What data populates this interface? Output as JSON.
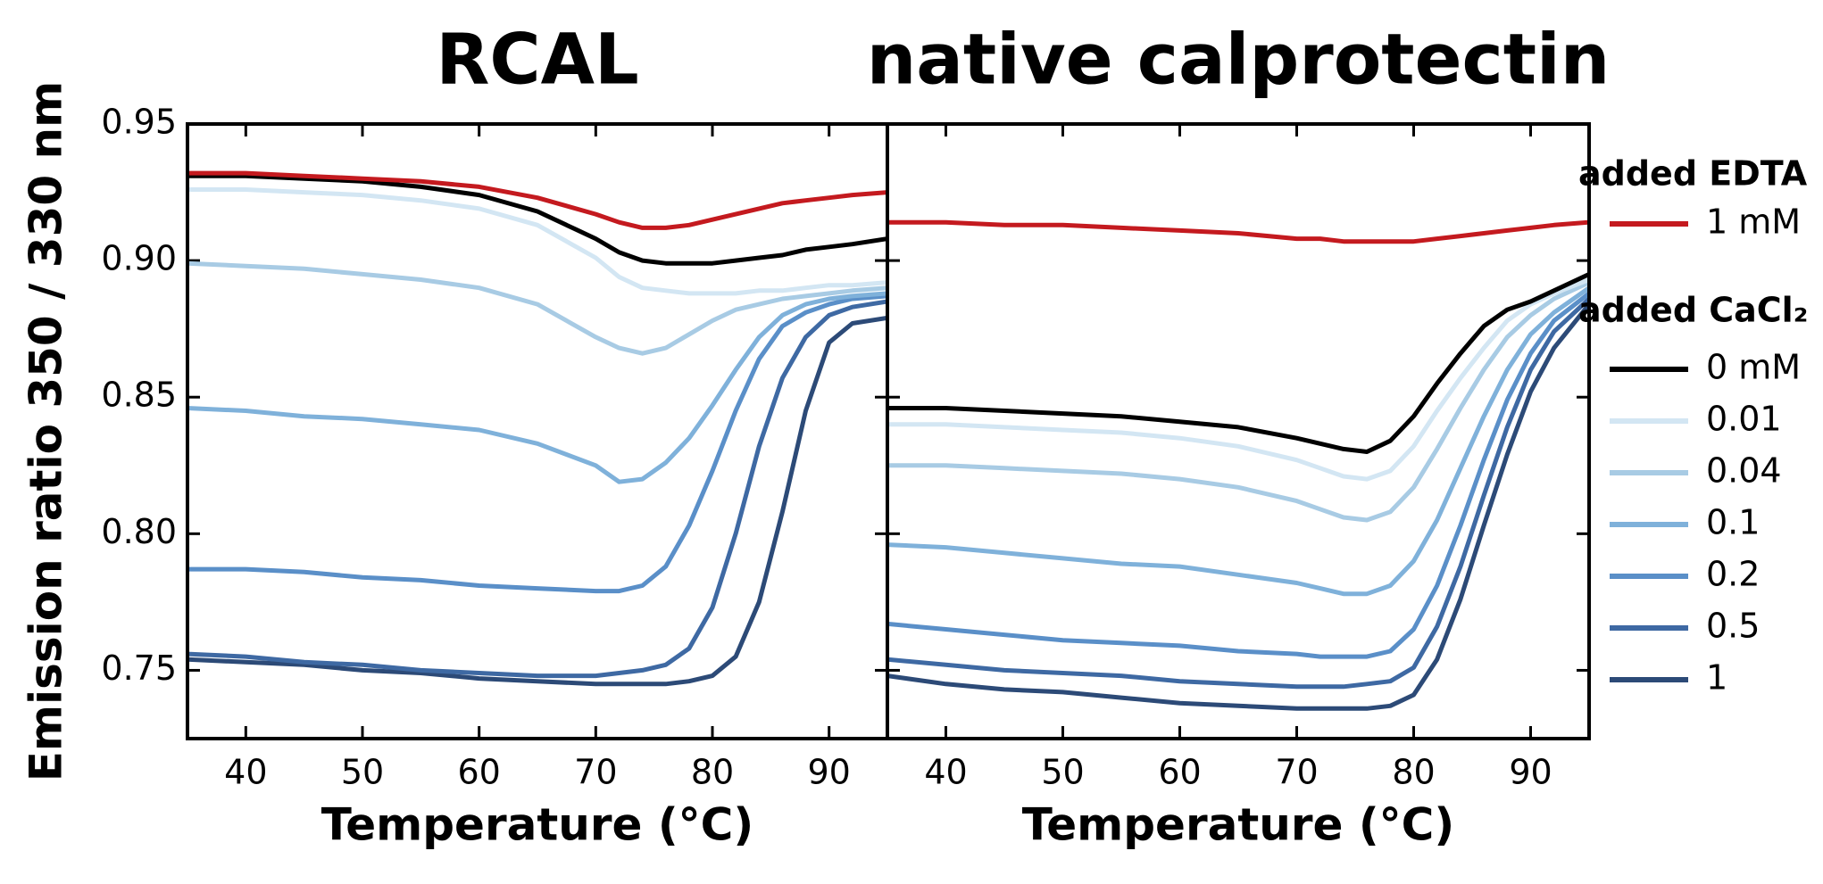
{
  "chart_data": [
    {
      "type": "line",
      "title": "RCAL",
      "xlabel": "Temperature (°C)",
      "ylabel": "Emission ratio 350 / 330 nm",
      "legend_titles": [
        {
          "text": "added EDTA",
          "color": "#b5191f"
        },
        {
          "text": "added CaCl₂",
          "color": "#2f4f7f"
        }
      ],
      "xlim": [
        35,
        95
      ],
      "ylim": [
        0.725,
        0.95
      ],
      "xticks": [
        40,
        50,
        60,
        70,
        80,
        90
      ],
      "yticks": [
        {
          "value": 0.75,
          "label": "0.75"
        },
        {
          "value": 0.8,
          "label": "0.80"
        },
        {
          "value": 0.85,
          "label": "0.85"
        },
        {
          "value": 0.9,
          "label": "0.90"
        },
        {
          "value": 0.95,
          "label": "0.95"
        }
      ],
      "x": [
        35,
        40,
        45,
        50,
        55,
        60,
        65,
        70,
        72,
        74,
        76,
        78,
        80,
        82,
        84,
        86,
        88,
        90,
        92,
        95
      ],
      "series": [
        {
          "name": "1 mM",
          "color": "#c41a1f",
          "values": [
            0.932,
            0.932,
            0.931,
            0.93,
            0.929,
            0.927,
            0.923,
            0.917,
            0.914,
            0.912,
            0.912,
            0.913,
            0.915,
            0.917,
            0.919,
            0.921,
            0.922,
            0.923,
            0.924,
            0.925
          ]
        },
        {
          "name": "0 mM",
          "color": "#000000",
          "values": [
            0.931,
            0.931,
            0.93,
            0.929,
            0.927,
            0.924,
            0.918,
            0.908,
            0.903,
            0.9,
            0.899,
            0.899,
            0.899,
            0.9,
            0.901,
            0.902,
            0.904,
            0.905,
            0.906,
            0.908
          ]
        },
        {
          "name": "0.01",
          "color": "#d3e6f3",
          "values": [
            0.926,
            0.926,
            0.925,
            0.924,
            0.922,
            0.919,
            0.913,
            0.901,
            0.894,
            0.89,
            0.889,
            0.888,
            0.888,
            0.888,
            0.889,
            0.889,
            0.89,
            0.891,
            0.891,
            0.892
          ]
        },
        {
          "name": "0.04",
          "color": "#a8cbe4",
          "values": [
            0.899,
            0.898,
            0.897,
            0.895,
            0.893,
            0.89,
            0.884,
            0.872,
            0.868,
            0.866,
            0.868,
            0.873,
            0.878,
            0.882,
            0.884,
            0.886,
            0.887,
            0.888,
            0.889,
            0.89
          ]
        },
        {
          "name": "0.1",
          "color": "#7fb1da",
          "values": [
            0.846,
            0.845,
            0.843,
            0.842,
            0.84,
            0.838,
            0.833,
            0.825,
            0.819,
            0.82,
            0.826,
            0.835,
            0.847,
            0.86,
            0.872,
            0.88,
            0.884,
            0.886,
            0.887,
            0.888
          ]
        },
        {
          "name": "0.2",
          "color": "#5a8fc8",
          "values": [
            0.787,
            0.787,
            0.786,
            0.784,
            0.783,
            0.781,
            0.78,
            0.779,
            0.779,
            0.781,
            0.788,
            0.803,
            0.823,
            0.845,
            0.864,
            0.876,
            0.881,
            0.884,
            0.886,
            0.887
          ]
        },
        {
          "name": "0.5",
          "color": "#3e69a3",
          "values": [
            0.756,
            0.755,
            0.753,
            0.752,
            0.75,
            0.749,
            0.748,
            0.748,
            0.749,
            0.75,
            0.752,
            0.758,
            0.773,
            0.8,
            0.832,
            0.857,
            0.872,
            0.88,
            0.883,
            0.885
          ]
        },
        {
          "name": "1",
          "color": "#2c4a77",
          "values": [
            0.754,
            0.753,
            0.752,
            0.75,
            0.749,
            0.747,
            0.746,
            0.745,
            0.745,
            0.745,
            0.745,
            0.746,
            0.748,
            0.755,
            0.775,
            0.808,
            0.845,
            0.87,
            0.877,
            0.879
          ]
        }
      ]
    },
    {
      "type": "line",
      "title": "native calprotectin",
      "xlabel": "Temperature (°C)",
      "xlim": [
        35,
        95
      ],
      "ylim": [
        0.725,
        0.95
      ],
      "xticks": [
        40,
        50,
        60,
        70,
        80,
        90
      ],
      "yticks": [
        0.75,
        0.8,
        0.85,
        0.9,
        0.95
      ],
      "x": [
        35,
        40,
        45,
        50,
        55,
        60,
        65,
        70,
        72,
        74,
        76,
        78,
        80,
        82,
        84,
        86,
        88,
        90,
        92,
        95
      ],
      "series": [
        {
          "color": "#c41a1f",
          "values": [
            0.914,
            0.914,
            0.913,
            0.913,
            0.912,
            0.911,
            0.91,
            0.908,
            0.908,
            0.907,
            0.907,
            0.907,
            0.907,
            0.908,
            0.909,
            0.91,
            0.911,
            0.912,
            0.913,
            0.914
          ]
        },
        {
          "color": "#000000",
          "values": [
            0.846,
            0.846,
            0.845,
            0.844,
            0.843,
            0.841,
            0.839,
            0.835,
            0.833,
            0.831,
            0.83,
            0.834,
            0.843,
            0.855,
            0.866,
            0.876,
            0.882,
            0.885,
            0.889,
            0.895
          ]
        },
        {
          "color": "#d3e6f3",
          "values": [
            0.84,
            0.84,
            0.839,
            0.838,
            0.837,
            0.835,
            0.832,
            0.827,
            0.824,
            0.821,
            0.82,
            0.823,
            0.832,
            0.845,
            0.857,
            0.868,
            0.878,
            0.884,
            0.888,
            0.893
          ]
        },
        {
          "color": "#a8cbe4",
          "values": [
            0.825,
            0.825,
            0.824,
            0.823,
            0.822,
            0.82,
            0.817,
            0.812,
            0.809,
            0.806,
            0.805,
            0.808,
            0.817,
            0.831,
            0.846,
            0.86,
            0.872,
            0.88,
            0.886,
            0.892
          ]
        },
        {
          "color": "#7fb1da",
          "values": [
            0.796,
            0.795,
            0.793,
            0.791,
            0.789,
            0.788,
            0.785,
            0.782,
            0.78,
            0.778,
            0.778,
            0.781,
            0.79,
            0.805,
            0.824,
            0.843,
            0.86,
            0.873,
            0.881,
            0.89
          ]
        },
        {
          "color": "#5a8fc8",
          "values": [
            0.767,
            0.765,
            0.763,
            0.761,
            0.76,
            0.759,
            0.757,
            0.756,
            0.755,
            0.755,
            0.755,
            0.757,
            0.765,
            0.781,
            0.803,
            0.827,
            0.849,
            0.866,
            0.878,
            0.888
          ]
        },
        {
          "color": "#3e69a3",
          "values": [
            0.754,
            0.752,
            0.75,
            0.749,
            0.748,
            0.746,
            0.745,
            0.744,
            0.744,
            0.744,
            0.745,
            0.746,
            0.751,
            0.766,
            0.788,
            0.814,
            0.839,
            0.86,
            0.874,
            0.886
          ]
        },
        {
          "color": "#2c4a77",
          "values": [
            0.748,
            0.745,
            0.743,
            0.742,
            0.74,
            0.738,
            0.737,
            0.736,
            0.736,
            0.736,
            0.736,
            0.737,
            0.741,
            0.754,
            0.776,
            0.803,
            0.829,
            0.852,
            0.868,
            0.884
          ]
        }
      ]
    }
  ]
}
